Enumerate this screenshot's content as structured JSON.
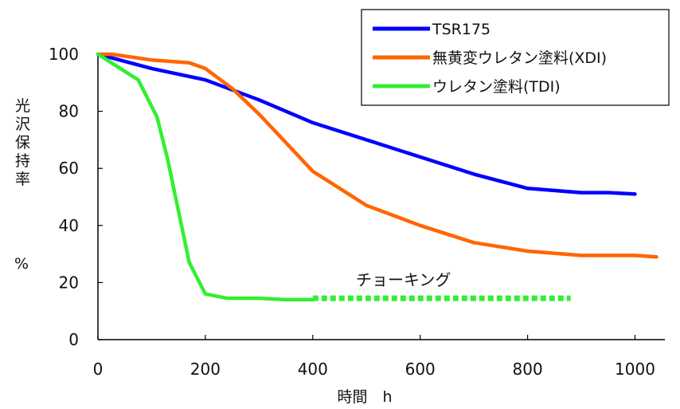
{
  "chart_data": {
    "type": "line",
    "xlabel": "時間　h",
    "ylabel": "光沢保持率",
    "ylabel_unit": "%",
    "xlim": [
      0,
      1050
    ],
    "ylim": [
      0,
      100
    ],
    "x_ticks": [
      0,
      200,
      400,
      600,
      800,
      1000
    ],
    "y_ticks": [
      0,
      20,
      40,
      60,
      80,
      100
    ],
    "grid": false,
    "legend_position": "top-right",
    "annotation": {
      "text": "チョーキング",
      "x": 500,
      "y": 20
    },
    "series": [
      {
        "name": "TSR175",
        "color": "#0000ff",
        "style": "solid",
        "points": [
          [
            0,
            100
          ],
          [
            100,
            95
          ],
          [
            200,
            91
          ],
          [
            300,
            84
          ],
          [
            400,
            76
          ],
          [
            500,
            70
          ],
          [
            600,
            64
          ],
          [
            700,
            58
          ],
          [
            800,
            53
          ],
          [
            900,
            51.5
          ],
          [
            950,
            51.5
          ],
          [
            1000,
            51
          ]
        ]
      },
      {
        "name": "無黄変ウレタン塗料(XDI)",
        "color": "#ff6600",
        "style": "solid",
        "points": [
          [
            0,
            100
          ],
          [
            25,
            100
          ],
          [
            100,
            98
          ],
          [
            170,
            97
          ],
          [
            200,
            95
          ],
          [
            250,
            88
          ],
          [
            300,
            79
          ],
          [
            400,
            59
          ],
          [
            500,
            47
          ],
          [
            600,
            40
          ],
          [
            700,
            34
          ],
          [
            800,
            31
          ],
          [
            900,
            29.5
          ],
          [
            1000,
            29.5
          ],
          [
            1040,
            29
          ]
        ]
      },
      {
        "name": "ウレタン塗料(TDI)",
        "color": "#33ee33",
        "style": "solid",
        "points": [
          [
            0,
            100
          ],
          [
            75,
            91
          ],
          [
            110,
            78
          ],
          [
            130,
            63
          ],
          [
            150,
            45
          ],
          [
            170,
            27
          ],
          [
            200,
            16
          ],
          [
            240,
            14.5
          ],
          [
            300,
            14.5
          ],
          [
            350,
            14
          ],
          [
            400,
            14
          ]
        ]
      },
      {
        "name": "ウレタン塗料(TDI)",
        "color": "#33ee33",
        "style": "dotted",
        "legend": false,
        "points": [
          [
            400,
            14.5
          ],
          [
            880,
            14.5
          ]
        ]
      }
    ]
  }
}
